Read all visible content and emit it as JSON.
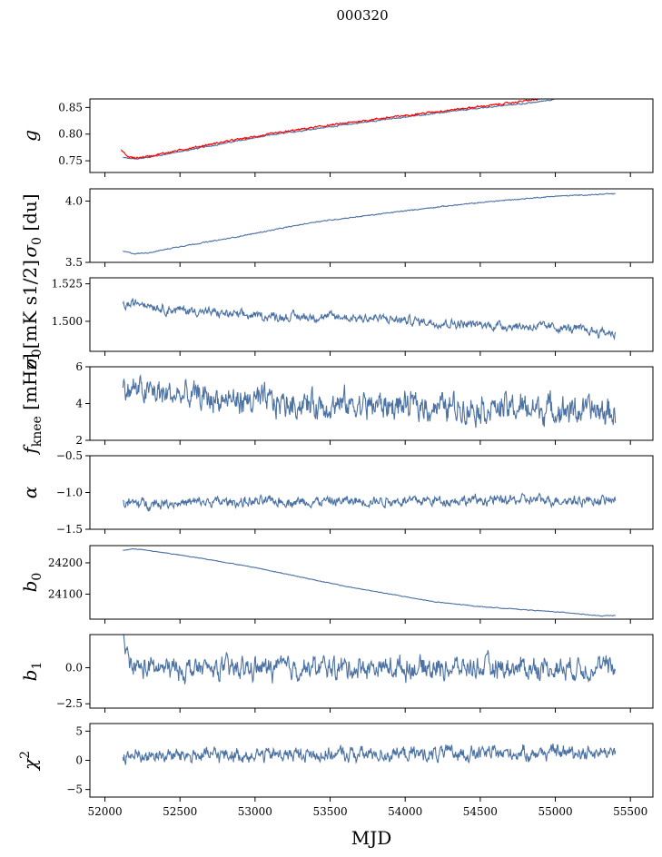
{
  "figure": {
    "title": "000320",
    "xlabel": "MJD"
  },
  "chart_data": [
    {
      "type": "line",
      "ylabel_base": "g",
      "ylabel_sub": "",
      "ylabel_sup": "",
      "ylabel_unit": "",
      "xlim": [
        51900,
        55650
      ],
      "ylim": [
        0.728,
        0.866
      ],
      "yticks": [
        0.75,
        0.8,
        0.85
      ],
      "ytick_labels": [
        "0.75",
        "0.80",
        "0.85"
      ],
      "series": [
        {
          "x": [
            52120,
            52200,
            52300,
            52500,
            52800,
            53100,
            53400,
            53800,
            54200,
            54600,
            54850,
            55000
          ],
          "y": [
            0.756,
            0.753,
            0.757,
            0.767,
            0.783,
            0.798,
            0.81,
            0.825,
            0.839,
            0.852,
            0.859,
            0.866
          ],
          "noise": 0.0008,
          "color": "#4c72a4"
        },
        {
          "x": [
            52110,
            52150,
            52200,
            52300,
            52500,
            52800,
            53100,
            53400,
            53800,
            54200,
            54600,
            54900
          ],
          "y": [
            0.77,
            0.758,
            0.755,
            0.759,
            0.77,
            0.786,
            0.8,
            0.813,
            0.828,
            0.842,
            0.855,
            0.866
          ],
          "noise": 0.0012,
          "color": "#ff0000"
        }
      ]
    },
    {
      "type": "line",
      "ylabel_base": "σ",
      "ylabel_sub": "0",
      "ylabel_sup": "",
      "ylabel_unit": " [du]",
      "xlim": [
        51900,
        55650
      ],
      "ylim": [
        3.5,
        4.1
      ],
      "yticks": [
        3.5,
        4.0
      ],
      "ytick_labels": [
        "3.5",
        "4.0"
      ],
      "series": [
        {
          "x": [
            52120,
            52200,
            52300,
            52500,
            52800,
            53100,
            53400,
            53800,
            54200,
            54600,
            55000,
            55400
          ],
          "y": [
            3.59,
            3.57,
            3.58,
            3.63,
            3.69,
            3.76,
            3.83,
            3.89,
            3.95,
            4.0,
            4.04,
            4.06
          ],
          "noise": 0.003,
          "color": "#4c72a4"
        }
      ]
    },
    {
      "type": "line",
      "ylabel_base": "σ",
      "ylabel_sub": "0",
      "ylabel_sup": "",
      "ylabel_unit": "[mK s1/2]",
      "xlim": [
        51900,
        55650
      ],
      "ylim": [
        1.48,
        1.529
      ],
      "yticks": [
        1.5,
        1.525
      ],
      "ytick_labels": [
        "1.500",
        "1.525"
      ],
      "series": [
        {
          "x": [
            52120,
            52250,
            52400,
            52600,
            52900,
            53200,
            53500,
            53800,
            54100,
            54400,
            54700,
            55000,
            55400
          ],
          "y": [
            1.51,
            1.513,
            1.508,
            1.507,
            1.504,
            1.503,
            1.503,
            1.502,
            1.5,
            1.498,
            1.497,
            1.496,
            1.492
          ],
          "noise": 0.0022,
          "color": "#4c72a4"
        }
      ]
    },
    {
      "type": "line",
      "ylabel_base": "f",
      "ylabel_sub": "knee",
      "ylabel_sup": "",
      "ylabel_unit": " [mHz]",
      "xlim": [
        51900,
        55650
      ],
      "ylim": [
        2,
        6
      ],
      "yticks": [
        2,
        4,
        6
      ],
      "ytick_labels": [
        "2",
        "4",
        "6"
      ],
      "series": [
        {
          "x": [
            52120,
            52400,
            52800,
            53200,
            53800,
            54400,
            55000,
            55400
          ],
          "y": [
            4.8,
            4.5,
            4.2,
            4.0,
            3.9,
            3.8,
            3.7,
            3.5
          ],
          "noise": 0.55,
          "color": "#4c72a4"
        }
      ]
    },
    {
      "type": "line",
      "ylabel_base": "α",
      "ylabel_sub": "",
      "ylabel_sup": "",
      "ylabel_unit": "",
      "xlim": [
        51900,
        55650
      ],
      "ylim": [
        -1.5,
        -0.5
      ],
      "yticks": [
        -1.5,
        -1.0,
        -0.5
      ],
      "ytick_labels": [
        "−1.5",
        "−1.0",
        "−0.5"
      ],
      "series": [
        {
          "x": [
            52120,
            52800,
            53500,
            54200,
            54900,
            55400
          ],
          "y": [
            -1.15,
            -1.13,
            -1.12,
            -1.11,
            -1.1,
            -1.11
          ],
          "noise": 0.05,
          "color": "#4c72a4"
        }
      ]
    },
    {
      "type": "line",
      "ylabel_base": "b",
      "ylabel_sub": "0",
      "ylabel_sup": "",
      "ylabel_unit": "",
      "xlim": [
        51900,
        55650
      ],
      "ylim": [
        24020,
        24255
      ],
      "yticks": [
        24100,
        24200
      ],
      "ytick_labels": [
        "24100",
        "24200"
      ],
      "series": [
        {
          "x": [
            52120,
            52200,
            52400,
            52700,
            53000,
            53300,
            53600,
            53900,
            54200,
            54500,
            54800,
            55100,
            55300,
            55400
          ],
          "y": [
            24240,
            24245,
            24232,
            24210,
            24185,
            24155,
            24125,
            24100,
            24075,
            24060,
            24050,
            24040,
            24030,
            24032
          ],
          "noise": 0.8,
          "color": "#4c72a4"
        }
      ]
    },
    {
      "type": "line",
      "ylabel_base": "b",
      "ylabel_sub": "1",
      "ylabel_sup": "",
      "ylabel_unit": "",
      "xlim": [
        51900,
        55650
      ],
      "ylim": [
        -2.8,
        2.3
      ],
      "yticks": [
        -2.5,
        0.0
      ],
      "ytick_labels": [
        "−2.5",
        "0.0"
      ],
      "series": [
        {
          "x": [
            52120,
            52150,
            52200,
            52500,
            53500,
            54500,
            55400
          ],
          "y": [
            2.0,
            0.5,
            0.0,
            -0.1,
            0.0,
            0.0,
            0.0
          ],
          "noise": 0.55,
          "color": "#4c72a4"
        }
      ]
    },
    {
      "type": "line",
      "ylabel_base": "χ",
      "ylabel_sub": "",
      "ylabel_sup": "2",
      "ylabel_unit": "",
      "xlim": [
        51900,
        55650
      ],
      "ylim": [
        -6.3,
        6.3
      ],
      "yticks": [
        -5,
        0,
        5
      ],
      "ytick_labels": [
        "−5",
        "0",
        "5"
      ],
      "series": [
        {
          "x": [
            52120,
            52800,
            53500,
            54200,
            54900,
            55400
          ],
          "y": [
            0.8,
            0.9,
            1.0,
            1.1,
            1.3,
            1.5
          ],
          "noise": 0.9,
          "color": "#4c72a4"
        }
      ]
    }
  ],
  "xticks": [
    52000,
    52500,
    53000,
    53500,
    54000,
    54500,
    55000,
    55500
  ],
  "xtick_labels": [
    "52000",
    "52500",
    "53000",
    "53500",
    "54000",
    "54500",
    "55000",
    "55500"
  ]
}
